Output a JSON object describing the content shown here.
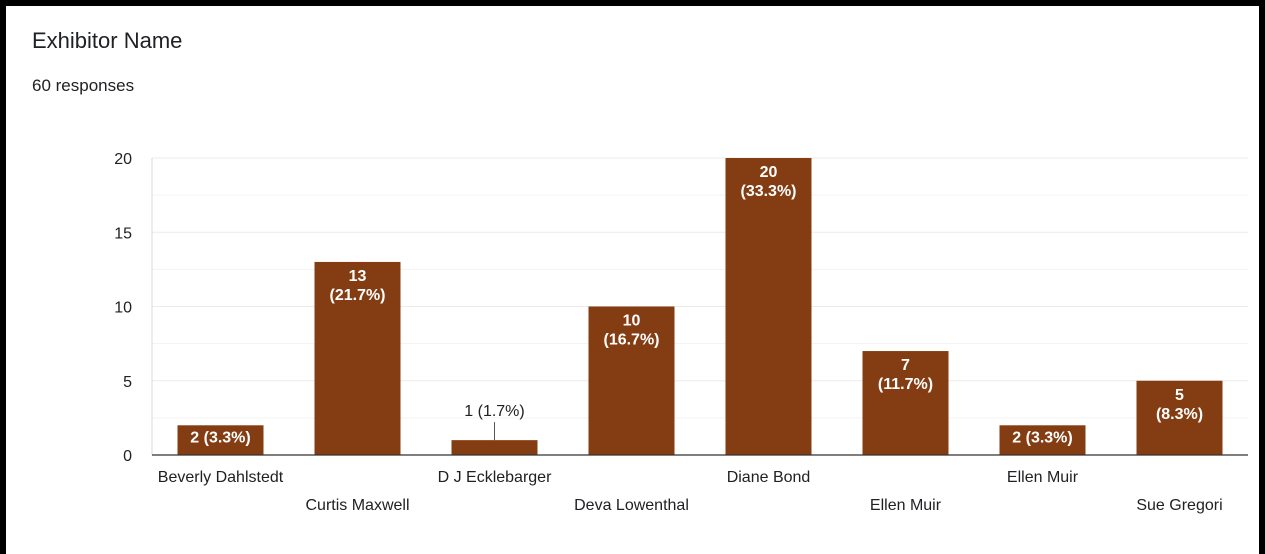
{
  "header": {
    "title": "Exhibitor Name",
    "responses": "60 responses"
  },
  "colors": {
    "bar": "#843c12",
    "grid": "#ebebeb",
    "axis": "#333333",
    "text": "#202124",
    "label_inside": "#ffffff"
  },
  "chart_data": {
    "type": "bar",
    "title": "Exhibitor Name",
    "xlabel": "",
    "ylabel": "",
    "ylim": [
      0,
      20
    ],
    "yticks": [
      0,
      5,
      10,
      15,
      20
    ],
    "grid": true,
    "categories": [
      "Beverly Dahlstedt",
      "Curtis Maxwell",
      "D J Ecklebarger",
      "Deva Lowenthal",
      "Diane Bond",
      "Ellen Muir",
      "Ellen Muir",
      "Sue Gregori"
    ],
    "values": [
      2,
      13,
      1,
      10,
      20,
      7,
      2,
      5
    ],
    "data_labels": [
      "2 (3.3%)",
      "13 (21.7%)",
      "1 (1.7%)",
      "10 (16.7%)",
      "20 (33.3%)",
      "7 (11.7%)",
      "2 (3.3%)",
      "5 (8.3%)"
    ]
  }
}
